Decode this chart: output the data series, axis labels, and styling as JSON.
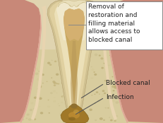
{
  "annotation1": "Removal of\nrestoration and\nfilling material\nallows access to\nblocked canal",
  "annotation2": "Blocked canal",
  "annotation3": "Infection",
  "ann1_fontsize": 6.5,
  "ann2_fontsize": 6.5,
  "ann3_fontsize": 6.5,
  "bg_color": "#e8dfc8",
  "bone_color": "#d4c89a",
  "bone_dot_color": "#c0b080",
  "gum_color": "#d4968a",
  "gum_light": "#e8b0a0",
  "tooth_outer": "#c8b07a",
  "tooth_mid": "#dcc898",
  "tooth_inner": "#ede0b8",
  "pulp_color": "#c8a864",
  "canal_dark": "#b09050",
  "infection_color": "#9a7828",
  "infection_dark": "#7a5818",
  "box_color": "#888888",
  "text_color": "#222222",
  "arrow_color": "#555555",
  "crown_top_color": "#e0d4a8",
  "periapical_color": "#b8a060"
}
